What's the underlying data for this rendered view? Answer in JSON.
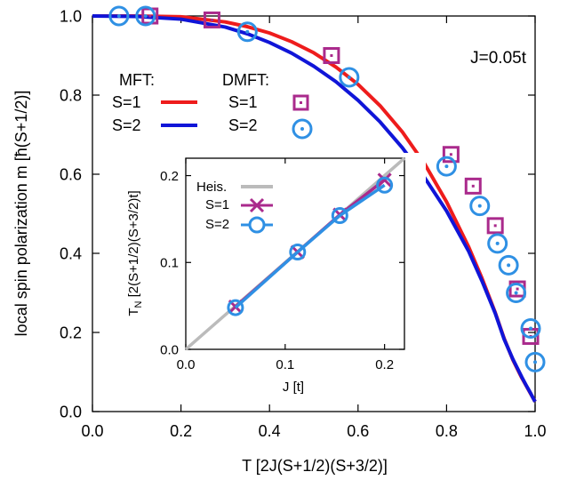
{
  "chart_data": [
    {
      "type": "line",
      "xlabel": "T [2J(S+1/2)(S+3/2)]",
      "ylabel": "local spin polarization m [ħ(S+1/2)]",
      "xlim": [
        0,
        1
      ],
      "ylim": [
        0,
        1
      ],
      "xticks": [
        "0.0",
        "0.2",
        "0.4",
        "0.6",
        "0.8",
        "1.0"
      ],
      "yticks": [
        "0.0",
        "0.2",
        "0.4",
        "0.6",
        "0.8",
        "1.0"
      ],
      "annotation": "J=0.05t",
      "legend": {
        "mft_header": "MFT:",
        "dmft_header": "DMFT:",
        "s1_label": "S=1",
        "s2_label": "S=2"
      },
      "series": [
        {
          "name": "MFT S=1",
          "style": "line",
          "color": "#ee1c1c",
          "x": [
            0.0,
            0.1,
            0.2,
            0.3,
            0.35,
            0.4,
            0.45,
            0.5,
            0.55,
            0.6,
            0.65,
            0.7,
            0.75,
            0.8,
            0.85,
            0.88,
            0.91,
            0.93,
            0.95,
            0.97,
            0.98,
            0.99,
            0.995,
            1.0
          ],
          "y": [
            1.0,
            1.0,
            0.998,
            0.985,
            0.973,
            0.957,
            0.935,
            0.907,
            0.871,
            0.827,
            0.773,
            0.707,
            0.627,
            0.53,
            0.416,
            0.337,
            0.25,
            0.185,
            0.13,
            0.085,
            0.065,
            0.045,
            0.035,
            0.025
          ]
        },
        {
          "name": "MFT S=2",
          "style": "line",
          "color": "#1015d8",
          "x": [
            0.0,
            0.1,
            0.2,
            0.3,
            0.35,
            0.4,
            0.45,
            0.5,
            0.55,
            0.6,
            0.65,
            0.7,
            0.75,
            0.8,
            0.85,
            0.88,
            0.91,
            0.93,
            0.95,
            0.97,
            0.98,
            0.99,
            0.995,
            1.0
          ],
          "y": [
            1.0,
            0.999,
            0.992,
            0.972,
            0.955,
            0.933,
            0.906,
            0.873,
            0.834,
            0.787,
            0.732,
            0.667,
            0.592,
            0.507,
            0.405,
            0.33,
            0.248,
            0.183,
            0.132,
            0.087,
            0.066,
            0.046,
            0.035,
            0.025
          ]
        },
        {
          "name": "DMFT S=1",
          "style": "square",
          "color": "#aa2a8c",
          "x": [
            0.13,
            0.27,
            0.54,
            0.81,
            0.86,
            0.91,
            0.96,
            0.99
          ],
          "y": [
            1.0,
            0.99,
            0.9,
            0.65,
            0.57,
            0.47,
            0.31,
            0.19
          ]
        },
        {
          "name": "DMFT S=2",
          "style": "circle",
          "color": "#2f90e4",
          "x": [
            0.06,
            0.12,
            0.35,
            0.58,
            0.8,
            0.875,
            0.915,
            0.94,
            0.957,
            0.99,
            1.0
          ],
          "y": [
            1.0,
            1.0,
            0.96,
            0.845,
            0.62,
            0.52,
            0.425,
            0.37,
            0.3,
            0.21,
            0.125
          ]
        }
      ]
    },
    {
      "type": "line",
      "xlabel": "J [t]",
      "ylabel": "T_N [2(S+1/2)(S+3/2)t]",
      "ylabel_main": "T",
      "ylabel_sub": "N",
      "ylabel_rest": " [2(S+1/2)(S+3/2)t]",
      "xlim": [
        0,
        0.22
      ],
      "ylim": [
        0,
        0.22
      ],
      "xticks": [
        "0.0",
        "0.1",
        "0.2"
      ],
      "yticks": [
        "0.0",
        "0.1",
        "0.2"
      ],
      "legend": {
        "heis_label": "Heis.",
        "s1_label": "S=1",
        "s2_label": "S=2"
      },
      "series": [
        {
          "name": "Heis.",
          "style": "line",
          "color": "#bbbbbb",
          "x": [
            0.0,
            0.22
          ],
          "y": [
            0.0,
            0.22
          ]
        },
        {
          "name": "S=1",
          "style": "cross-line",
          "color": "#aa2a8c",
          "x": [
            0.05,
            0.1125,
            0.155,
            0.2
          ],
          "y": [
            0.049,
            0.112,
            0.155,
            0.195
          ]
        },
        {
          "name": "S=2",
          "style": "circle-line",
          "color": "#2f90e4",
          "x": [
            0.05,
            0.1125,
            0.155,
            0.2
          ],
          "y": [
            0.048,
            0.112,
            0.154,
            0.189
          ]
        }
      ]
    }
  ]
}
